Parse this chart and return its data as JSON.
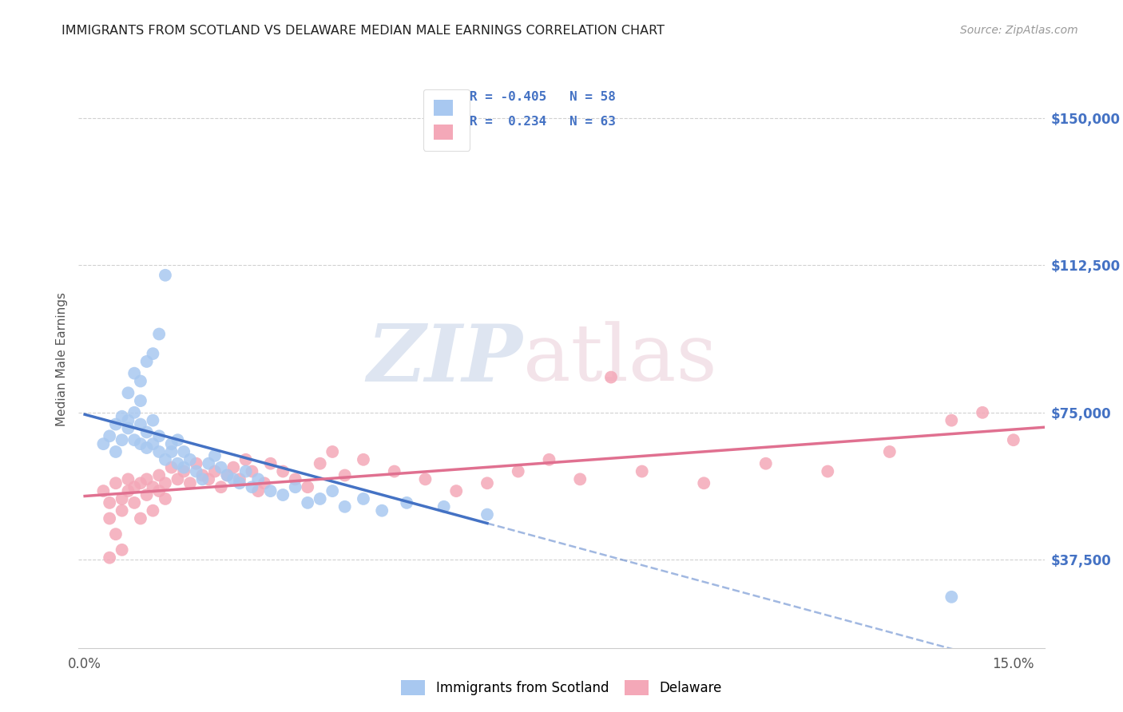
{
  "title": "IMMIGRANTS FROM SCOTLAND VS DELAWARE MEDIAN MALE EARNINGS CORRELATION CHART",
  "source": "Source: ZipAtlas.com",
  "ylabel": "Median Male Earnings",
  "ytick_labels": [
    "$37,500",
    "$75,000",
    "$112,500",
    "$150,000"
  ],
  "ytick_values": [
    37500,
    75000,
    112500,
    150000
  ],
  "ymin": 15000,
  "ymax": 162000,
  "xmin": -0.001,
  "xmax": 0.155,
  "scotland_color": "#a8c8f0",
  "delaware_color": "#f4a8b8",
  "scotland_line_color": "#4472c4",
  "delaware_line_color": "#e07090",
  "legend_color": "#4472c4",
  "title_color": "#222222",
  "source_color": "#999999",
  "grid_color": "#cccccc",
  "watermark_zip_color": "#c8d8ec",
  "watermark_atlas_color": "#e0c8d0",
  "scotland_x": [
    0.003,
    0.004,
    0.005,
    0.005,
    0.006,
    0.006,
    0.007,
    0.007,
    0.007,
    0.008,
    0.008,
    0.008,
    0.009,
    0.009,
    0.009,
    0.009,
    0.01,
    0.01,
    0.01,
    0.011,
    0.011,
    0.011,
    0.012,
    0.012,
    0.012,
    0.013,
    0.013,
    0.014,
    0.014,
    0.015,
    0.015,
    0.016,
    0.016,
    0.017,
    0.018,
    0.019,
    0.02,
    0.021,
    0.022,
    0.023,
    0.024,
    0.025,
    0.026,
    0.027,
    0.028,
    0.03,
    0.032,
    0.034,
    0.036,
    0.038,
    0.04,
    0.042,
    0.045,
    0.048,
    0.052,
    0.058,
    0.065,
    0.14
  ],
  "scotland_y": [
    67000,
    69000,
    65000,
    72000,
    68000,
    74000,
    71000,
    73000,
    80000,
    68000,
    75000,
    85000,
    67000,
    72000,
    78000,
    83000,
    66000,
    70000,
    88000,
    67000,
    73000,
    90000,
    65000,
    69000,
    95000,
    63000,
    110000,
    65000,
    67000,
    62000,
    68000,
    61000,
    65000,
    63000,
    60000,
    58000,
    62000,
    64000,
    61000,
    59000,
    58000,
    57000,
    60000,
    56000,
    58000,
    55000,
    54000,
    56000,
    52000,
    53000,
    55000,
    51000,
    53000,
    50000,
    52000,
    51000,
    49000,
    28000
  ],
  "delaware_x": [
    0.003,
    0.004,
    0.004,
    0.005,
    0.005,
    0.006,
    0.006,
    0.007,
    0.007,
    0.008,
    0.008,
    0.009,
    0.009,
    0.01,
    0.01,
    0.011,
    0.011,
    0.012,
    0.012,
    0.013,
    0.013,
    0.014,
    0.015,
    0.016,
    0.017,
    0.018,
    0.019,
    0.02,
    0.021,
    0.022,
    0.023,
    0.024,
    0.025,
    0.026,
    0.027,
    0.028,
    0.029,
    0.03,
    0.032,
    0.034,
    0.036,
    0.038,
    0.04,
    0.042,
    0.045,
    0.05,
    0.055,
    0.06,
    0.065,
    0.07,
    0.075,
    0.08,
    0.09,
    0.1,
    0.11,
    0.12,
    0.13,
    0.14,
    0.145,
    0.15,
    0.004,
    0.006,
    0.085
  ],
  "delaware_y": [
    55000,
    52000,
    48000,
    57000,
    44000,
    53000,
    50000,
    58000,
    55000,
    56000,
    52000,
    57000,
    48000,
    58000,
    54000,
    56000,
    50000,
    59000,
    55000,
    57000,
    53000,
    61000,
    58000,
    60000,
    57000,
    62000,
    59000,
    58000,
    60000,
    56000,
    59000,
    61000,
    58000,
    63000,
    60000,
    55000,
    57000,
    62000,
    60000,
    58000,
    56000,
    62000,
    65000,
    59000,
    63000,
    60000,
    58000,
    55000,
    57000,
    60000,
    63000,
    58000,
    60000,
    57000,
    62000,
    60000,
    65000,
    73000,
    75000,
    68000,
    38000,
    40000,
    84000
  ],
  "background_color": "#ffffff"
}
